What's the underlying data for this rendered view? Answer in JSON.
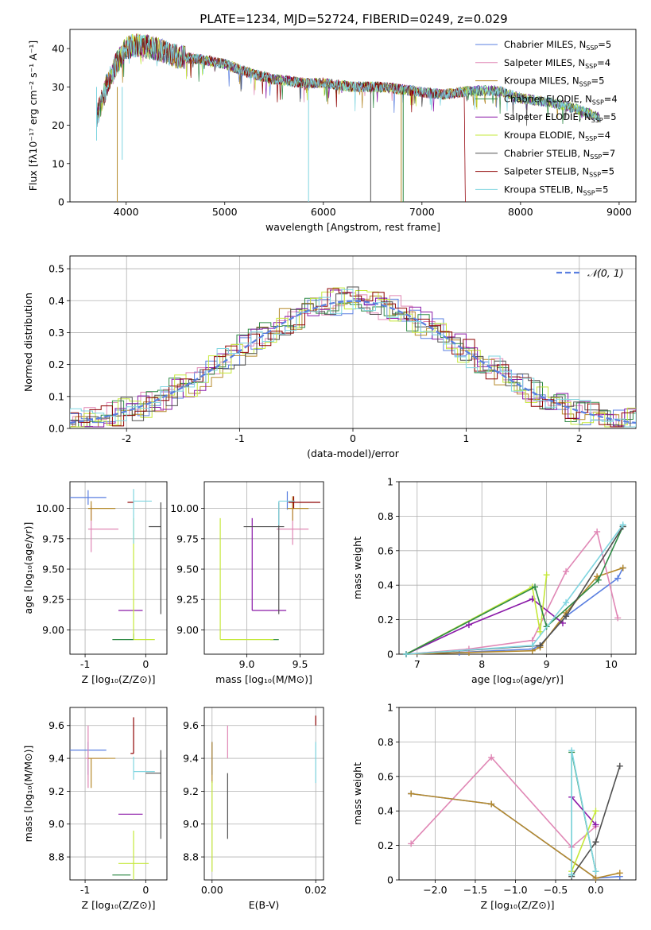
{
  "figure_title": "PLATE=1234, MJD=52724, FIBERID=0249, z=0.029",
  "colors": [
    "#5a7fe0",
    "#e087b5",
    "#b5892a",
    "#2f8a46",
    "#8b1aa8",
    "#c5e83a",
    "#505050",
    "#8e0000",
    "#7fd5e0"
  ],
  "chart_data": [
    {
      "id": "spectrum",
      "type": "line",
      "title": "PLATE=1234, MJD=52724, FIBERID=0249, z=0.029",
      "xlabel": "wavelength [Angstrom, rest frame]",
      "ylabel": "Flux [fλ10⁻¹⁷ erg cm⁻² s⁻¹ A⁻¹]",
      "xlim": [
        3430,
        9170
      ],
      "ylim": [
        0,
        45
      ],
      "xticks": [
        4000,
        5000,
        6000,
        7000,
        8000,
        9000
      ],
      "yticks": [
        0,
        10,
        20,
        30,
        40
      ],
      "grid": false,
      "legend": "top-right",
      "x_anchor": [
        3700,
        3800,
        3900,
        4000,
        4100,
        4300,
        4500,
        4800,
        5000,
        5200,
        5500,
        5800,
        6000,
        6300,
        6600,
        6900,
        7200,
        7500,
        7800,
        8000,
        8300,
        8600,
        8800
      ],
      "y_anchor": [
        22,
        30,
        36,
        40,
        41,
        40,
        38,
        37,
        36,
        34,
        32,
        31,
        31,
        30,
        30,
        29,
        28,
        29,
        29,
        27,
        26,
        24,
        22
      ],
      "drops": [
        {
          "series": 8,
          "x": 3700,
          "y": 16
        },
        {
          "series": 2,
          "x": 3910,
          "y": 0
        },
        {
          "series": 8,
          "x": 3960,
          "y": 11
        },
        {
          "series": 8,
          "x": 5850,
          "y": 0
        },
        {
          "series": 6,
          "x": 6480,
          "y": 0
        },
        {
          "series": 2,
          "x": 6790,
          "y": 0
        },
        {
          "series": 3,
          "x": 6810,
          "y": 0
        }
      ],
      "cutoffs": [
        {
          "series": 7,
          "x": 7430
        },
        {
          "series": 1,
          "x": 7430
        }
      ],
      "series": [
        {
          "name": "Chabrier MILES, N",
          "sub": "SSP",
          "tail": "=5"
        },
        {
          "name": "Salpeter MILES, N",
          "sub": "SSP",
          "tail": "=4"
        },
        {
          "name": "Kroupa MILES, N",
          "sub": "SSP",
          "tail": "=5"
        },
        {
          "name": "Chabrier ELODIE, N",
          "sub": "SSP",
          "tail": "=4"
        },
        {
          "name": "Salpeter ELODIE, N",
          "sub": "SSP",
          "tail": "=5"
        },
        {
          "name": "Kroupa ELODIE, N",
          "sub": "SSP",
          "tail": "=4"
        },
        {
          "name": "Chabrier STELIB, N",
          "sub": "SSP",
          "tail": "=7"
        },
        {
          "name": "Salpeter STELIB, N",
          "sub": "SSP",
          "tail": "=5"
        },
        {
          "name": "Kroupa STELIB, N",
          "sub": "SSP",
          "tail": "=5"
        }
      ]
    },
    {
      "id": "residuals",
      "type": "line",
      "xlabel": "(data-model)/error",
      "ylabel": "Normed distribution",
      "xlim": [
        -2.5,
        2.5
      ],
      "ylim": [
        0,
        0.54
      ],
      "xticks": [
        -2,
        -1,
        0,
        1,
        2
      ],
      "yticks": [
        0.0,
        0.1,
        0.2,
        0.3,
        0.4,
        0.5
      ],
      "grid": true,
      "legend": "top-right",
      "reference": {
        "name": "𝒩(0, 1)",
        "mean": 0,
        "sigma": 1,
        "color": "#5a7fe0"
      },
      "bin_width": 0.1
    },
    {
      "id": "age_vs_Z",
      "type": "scatter",
      "xlabel": "Z [log₁₀(Z/Z⊙)]",
      "ylabel": "age  [log₁₀(age/yr)]",
      "xlim": [
        -1.25,
        0.35
      ],
      "ylim": [
        8.8,
        10.22
      ],
      "xticks": [
        -1,
        0
      ],
      "yticks": [
        9.0,
        9.25,
        9.5,
        9.75,
        10.0
      ],
      "ytick_labels": [
        "9.00",
        "9.25",
        "9.50",
        "9.75",
        "10.00"
      ],
      "grid": true,
      "points": [
        {
          "s": 0,
          "x": -0.95,
          "y": 10.09,
          "xl": 0.3,
          "xh": 0.3,
          "yl": 0.06,
          "yh": 0.06
        },
        {
          "s": 1,
          "x": -0.9,
          "y": 9.83,
          "xl": 0.05,
          "xh": 0.45,
          "yl": 0.19,
          "yh": 0.19
        },
        {
          "s": 2,
          "x": -0.9,
          "y": 10.0,
          "xl": 0.05,
          "xh": 0.4,
          "yl": 0.1,
          "yh": 0.06
        },
        {
          "s": 3,
          "x": -0.2,
          "y": 8.92,
          "xl": 0.35,
          "xh": 0.0,
          "yl": 0.0,
          "yh": 0.05
        },
        {
          "s": 4,
          "x": -0.25,
          "y": 9.16,
          "xl": 0.2,
          "xh": 0.2,
          "yl": 0.0,
          "yh": 0.0
        },
        {
          "s": 5,
          "x": -0.2,
          "y": 8.92,
          "xl": 0.0,
          "xh": 0.35,
          "yl": 0.0,
          "yh": 1.0
        },
        {
          "s": 6,
          "x": 0.25,
          "y": 9.85,
          "xl": 0.2,
          "xh": 0.0,
          "yl": 0.72,
          "yh": 0.2
        },
        {
          "s": 7,
          "x": -0.2,
          "y": 10.05,
          "xl": 0.1,
          "xh": 0.0,
          "yl": 0.0,
          "yh": 0.0
        },
        {
          "s": 8,
          "x": -0.2,
          "y": 10.06,
          "xl": 0.0,
          "xh": 0.3,
          "yl": 0.35,
          "yh": 0.1
        }
      ]
    },
    {
      "id": "age_vs_mass",
      "type": "scatter",
      "xlabel": "mass [log₁₀(M/M⊙)]",
      "xlim": [
        8.6,
        9.72
      ],
      "ylim": [
        8.8,
        10.22
      ],
      "xticks": [
        9.0,
        9.5
      ],
      "xtick_labels": [
        "9.0",
        "9.5"
      ],
      "yticks": [
        9.0,
        9.25,
        9.5,
        9.75,
        10.0
      ],
      "ytick_labels": [
        "9.00",
        "9.25",
        "9.50",
        "9.75",
        "10.00"
      ],
      "grid": true,
      "points": [
        {
          "s": 0,
          "x": 9.38,
          "y": 10.09,
          "xl": 0.0,
          "xh": 0.0,
          "yl": 0.1,
          "yh": 0.05
        },
        {
          "s": 1,
          "x": 9.43,
          "y": 9.83,
          "xl": 0.15,
          "xh": 0.15,
          "yl": 0.13,
          "yh": 0.25
        },
        {
          "s": 2,
          "x": 9.43,
          "y": 10.0,
          "xl": 0.05,
          "xh": 0.15,
          "yl": 0.1,
          "yh": 0.1
        },
        {
          "s": 3,
          "x": 9.3,
          "y": 8.92,
          "xl": 0.08,
          "xh": 0.0,
          "yl": 0.0,
          "yh": 0.0
        },
        {
          "s": 4,
          "x": 9.05,
          "y": 9.16,
          "xl": 0.0,
          "xh": 0.32,
          "yl": 0.0,
          "yh": 0.76
        },
        {
          "s": 5,
          "x": 8.75,
          "y": 8.92,
          "xl": 0.0,
          "xh": 0.5,
          "yl": 0.0,
          "yh": 1.0
        },
        {
          "s": 6,
          "x": 9.3,
          "y": 9.85,
          "xl": 0.33,
          "xh": 0.05,
          "yl": 0.72,
          "yh": 0.2
        },
        {
          "s": 7,
          "x": 9.44,
          "y": 10.05,
          "xl": 0.05,
          "xh": 0.25,
          "yl": 0.05,
          "yh": 0.05
        },
        {
          "s": 8,
          "x": 9.3,
          "y": 10.06,
          "xl": 0.0,
          "xh": 0.15,
          "yl": 0.2,
          "yh": 0.0
        }
      ]
    },
    {
      "id": "weight_vs_age",
      "type": "line",
      "xlabel": "age  [log₁₀(age/yr)]",
      "ylabel": "mass weight",
      "xlim": [
        6.72,
        10.38
      ],
      "ylim": [
        0,
        1.0
      ],
      "xticks": [
        7,
        8,
        9,
        10
      ],
      "yticks": [
        0.0,
        0.2,
        0.4,
        0.6,
        0.8,
        1.0
      ],
      "grid": true,
      "lines": [
        {
          "s": 0,
          "x": [
            6.83,
            7.65,
            8.78,
            8.9,
            9.3,
            10.1,
            10.18
          ],
          "y": [
            0.0,
            0.01,
            0.03,
            0.05,
            0.22,
            0.44,
            0.5
          ]
        },
        {
          "s": 2,
          "x": [
            6.83,
            7.8,
            8.78,
            8.9,
            9.3,
            9.78,
            10.18
          ],
          "y": [
            0.0,
            0.01,
            0.02,
            0.04,
            0.24,
            0.45,
            0.5
          ]
        },
        {
          "s": 1,
          "x": [
            6.83,
            7.8,
            8.78,
            9.3,
            9.78,
            10.1
          ],
          "y": [
            0.0,
            0.03,
            0.08,
            0.48,
            0.71,
            0.21
          ]
        },
        {
          "s": 4,
          "x": [
            6.83,
            7.8,
            8.78,
            9.25
          ],
          "y": [
            0.0,
            0.17,
            0.32,
            0.18
          ]
        },
        {
          "s": 5,
          "x": [
            6.83,
            8.78,
            8.9,
            9.0
          ],
          "y": [
            0.0,
            0.39,
            0.13,
            0.46
          ]
        },
        {
          "s": 3,
          "x": [
            6.83,
            8.82,
            9.0,
            9.8,
            10.18
          ],
          "y": [
            0.0,
            0.39,
            0.16,
            0.43,
            0.74
          ]
        },
        {
          "s": 6,
          "x": [
            6.83,
            8.9,
            9.3,
            10.18
          ],
          "y": [
            0.0,
            0.05,
            0.22,
            0.74
          ]
        },
        {
          "s": 8,
          "x": [
            6.83,
            8.78,
            9.3,
            10.18
          ],
          "y": [
            0.0,
            0.05,
            0.3,
            0.75
          ]
        }
      ]
    },
    {
      "id": "mass_vs_Z",
      "type": "scatter",
      "xlabel": "Z [log₁₀(Z/Z⊙)]",
      "ylabel": "mass [log₁₀(M/M⊙)]",
      "xlim": [
        -1.25,
        0.35
      ],
      "ylim": [
        8.66,
        9.71
      ],
      "xticks": [
        -1,
        0
      ],
      "yticks": [
        8.8,
        9.0,
        9.2,
        9.4,
        9.6
      ],
      "ytick_labels": [
        "8.8",
        "9.0",
        "9.2",
        "9.4",
        "9.6"
      ],
      "grid": true,
      "points": [
        {
          "s": 0,
          "x": -0.95,
          "y": 9.45,
          "xl": 0.3,
          "xh": 0.3,
          "yl": 0.15,
          "yh": 0.05
        },
        {
          "s": 1,
          "x": -0.95,
          "y": 9.4,
          "xl": 0.05,
          "xh": 0.3,
          "yl": 0.18,
          "yh": 0.2
        },
        {
          "s": 2,
          "x": -0.9,
          "y": 9.4,
          "xl": 0.05,
          "xh": 0.4,
          "yl": 0.18,
          "yh": 0.0
        },
        {
          "s": 3,
          "x": -0.25,
          "y": 8.69,
          "xl": 0.3,
          "xh": 0.0,
          "yl": 0.0,
          "yh": 0.0
        },
        {
          "s": 4,
          "x": -0.25,
          "y": 9.06,
          "xl": 0.2,
          "xh": 0.2,
          "yl": 0.0,
          "yh": 0.0
        },
        {
          "s": 5,
          "x": -0.2,
          "y": 8.76,
          "xl": 0.25,
          "xh": 0.25,
          "yl": 0.1,
          "yh": 0.2
        },
        {
          "s": 6,
          "x": 0.25,
          "y": 9.31,
          "xl": 0.25,
          "xh": 0.0,
          "yl": 0.4,
          "yh": 0.14
        },
        {
          "s": 7,
          "x": -0.2,
          "y": 9.43,
          "xl": 0.05,
          "xh": 0.0,
          "yl": 0.0,
          "yh": 0.22
        },
        {
          "s": 8,
          "x": -0.2,
          "y": 9.32,
          "xl": 0.0,
          "xh": 0.35,
          "yl": 0.05,
          "yh": 0.09
        }
      ]
    },
    {
      "id": "mass_vs_ebv",
      "type": "scatter",
      "xlabel": "E(B-V)",
      "xlim": [
        -0.0015,
        0.0215
      ],
      "ylim": [
        8.66,
        9.71
      ],
      "xticks": [
        0.0,
        0.02
      ],
      "xtick_labels": [
        "0.00",
        "0.02"
      ],
      "yticks": [
        8.8,
        9.0,
        9.2,
        9.4,
        9.6
      ],
      "ytick_labels": [
        "8.8",
        "9.0",
        "9.2",
        "9.4",
        "9.6"
      ],
      "grid": true,
      "points": [
        {
          "s": 0,
          "x": 0.0,
          "y": 9.45,
          "xl": 0,
          "xh": 0,
          "yl": 0.15,
          "yh": 0.05
        },
        {
          "s": 1,
          "x": 0.003,
          "y": 9.4,
          "xl": 0,
          "xh": 0,
          "yl": 0.0,
          "yh": 0.2
        },
        {
          "s": 2,
          "x": 0.0,
          "y": 9.35,
          "xl": 0,
          "xh": 0,
          "yl": 0.1,
          "yh": 0.15
        },
        {
          "s": 3,
          "x": 0.0,
          "y": 8.69,
          "xl": 0,
          "xh": 0,
          "yl": 0.0,
          "yh": 0.0
        },
        {
          "s": 4,
          "x": 0.0,
          "y": 9.3,
          "xl": 0,
          "xh": 0,
          "yl": 0.0,
          "yh": 0.0
        },
        {
          "s": 5,
          "x": 0.0,
          "y": 8.76,
          "xl": 0,
          "xh": 0,
          "yl": 0.05,
          "yh": 0.5
        },
        {
          "s": 6,
          "x": 0.003,
          "y": 9.31,
          "xl": 0,
          "xh": 0,
          "yl": 0.4,
          "yh": 0.0
        },
        {
          "s": 7,
          "x": 0.02,
          "y": 9.6,
          "xl": 0,
          "xh": 0,
          "yl": 0.0,
          "yh": 0.06
        },
        {
          "s": 8,
          "x": 0.02,
          "y": 9.4,
          "xl": 0,
          "xh": 0,
          "yl": 0.15,
          "yh": 0.1
        }
      ]
    },
    {
      "id": "weight_vs_Z",
      "type": "line",
      "xlabel": "Z [log₁₀(Z/Z⊙)]",
      "ylabel": "mass weight",
      "xlim": [
        -2.45,
        0.5
      ],
      "ylim": [
        0,
        1.0
      ],
      "xticks": [
        -2.0,
        -1.5,
        -1.0,
        -0.5,
        0.0
      ],
      "xtick_labels": [
        "−2.0",
        "−1.5",
        "−1.0",
        "−0.5",
        "0.0"
      ],
      "yticks": [
        0.0,
        0.2,
        0.4,
        0.6,
        0.8,
        1.0
      ],
      "grid": true,
      "lines": [
        {
          "s": 1,
          "x": [
            -2.3,
            -1.3,
            -0.3,
            0.0
          ],
          "y": [
            0.21,
            0.71,
            0.19,
            0.31
          ]
        },
        {
          "s": 0,
          "x": [
            -2.3,
            -1.3,
            0.0,
            0.3
          ],
          "y": [
            0.5,
            0.44,
            0.01,
            0.02
          ]
        },
        {
          "s": 2,
          "x": [
            -2.3,
            -1.3,
            0.0,
            0.3
          ],
          "y": [
            0.5,
            0.44,
            0.01,
            0.04
          ]
        },
        {
          "s": 4,
          "x": [
            -0.3,
            0.0
          ],
          "y": [
            0.48,
            0.32
          ]
        },
        {
          "s": 3,
          "x": [
            -0.3,
            -0.3,
            0.0
          ],
          "y": [
            0.03,
            0.74,
            0.05
          ]
        },
        {
          "s": 5,
          "x": [
            -0.3,
            0.0
          ],
          "y": [
            0.05,
            0.4
          ]
        },
        {
          "s": 6,
          "x": [
            -0.3,
            0.0,
            0.3
          ],
          "y": [
            0.02,
            0.22,
            0.66
          ]
        },
        {
          "s": 8,
          "x": [
            -0.3,
            -0.3,
            0.0
          ],
          "y": [
            0.03,
            0.75,
            0.05
          ]
        }
      ]
    }
  ]
}
